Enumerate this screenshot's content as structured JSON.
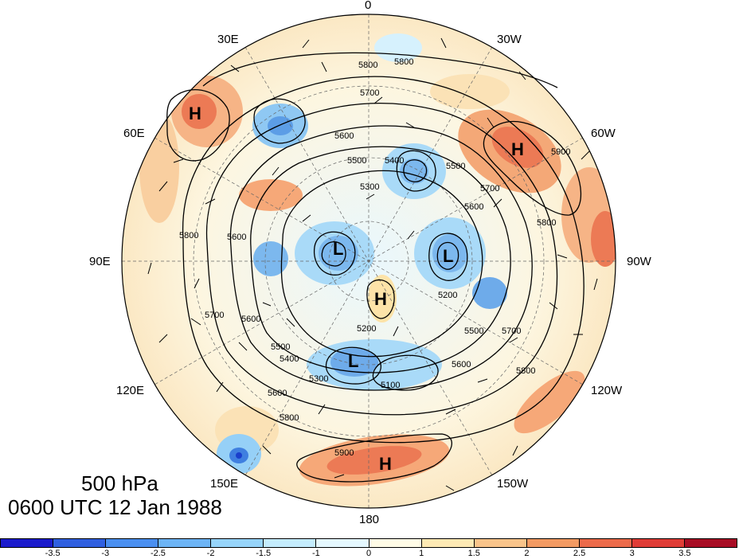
{
  "title": {
    "line1": "500 hPa",
    "line2": "0600 UTC 12 Jan 1988"
  },
  "longitude_labels": [
    "0",
    "30W",
    "60W",
    "90W",
    "120W",
    "150W",
    "180",
    "150E",
    "120E",
    "90E",
    "60E",
    "30E"
  ],
  "pressure_systems": [
    {
      "type": "H"
    },
    {
      "type": "H"
    },
    {
      "type": "L"
    },
    {
      "type": "L"
    },
    {
      "type": "H"
    },
    {
      "type": "L"
    },
    {
      "type": "H"
    }
  ],
  "contour_labels": [
    "5800",
    "5800",
    "5700",
    "5600",
    "5500",
    "5400",
    "5300",
    "5500",
    "5700",
    "5900",
    "5800",
    "5600",
    "5800",
    "5700",
    "5600",
    "5600",
    "5500",
    "5400",
    "5300",
    "5200",
    "5200",
    "5100",
    "5500",
    "5600",
    "5800",
    "5900",
    "5600",
    "5700",
    "5800"
  ],
  "colorbar": {
    "tick_labels": [
      "-3.5",
      "-3",
      "-2.5",
      "-2",
      "-1.5",
      "-1",
      "0",
      "1",
      "1.5",
      "2",
      "2.5",
      "3",
      "3.5"
    ],
    "colors": [
      "#1a1acc",
      "#2f5fe0",
      "#4a8ff0",
      "#6cb4f5",
      "#96d4fa",
      "#c4ecfd",
      "#e4f7fe",
      "#fffbe6",
      "#fde9b4",
      "#f9c48a",
      "#f39a62",
      "#ec6a4a",
      "#e03c36",
      "#a80c24"
    ]
  },
  "colors": {
    "contour": "#000000",
    "grid": "#555555"
  }
}
